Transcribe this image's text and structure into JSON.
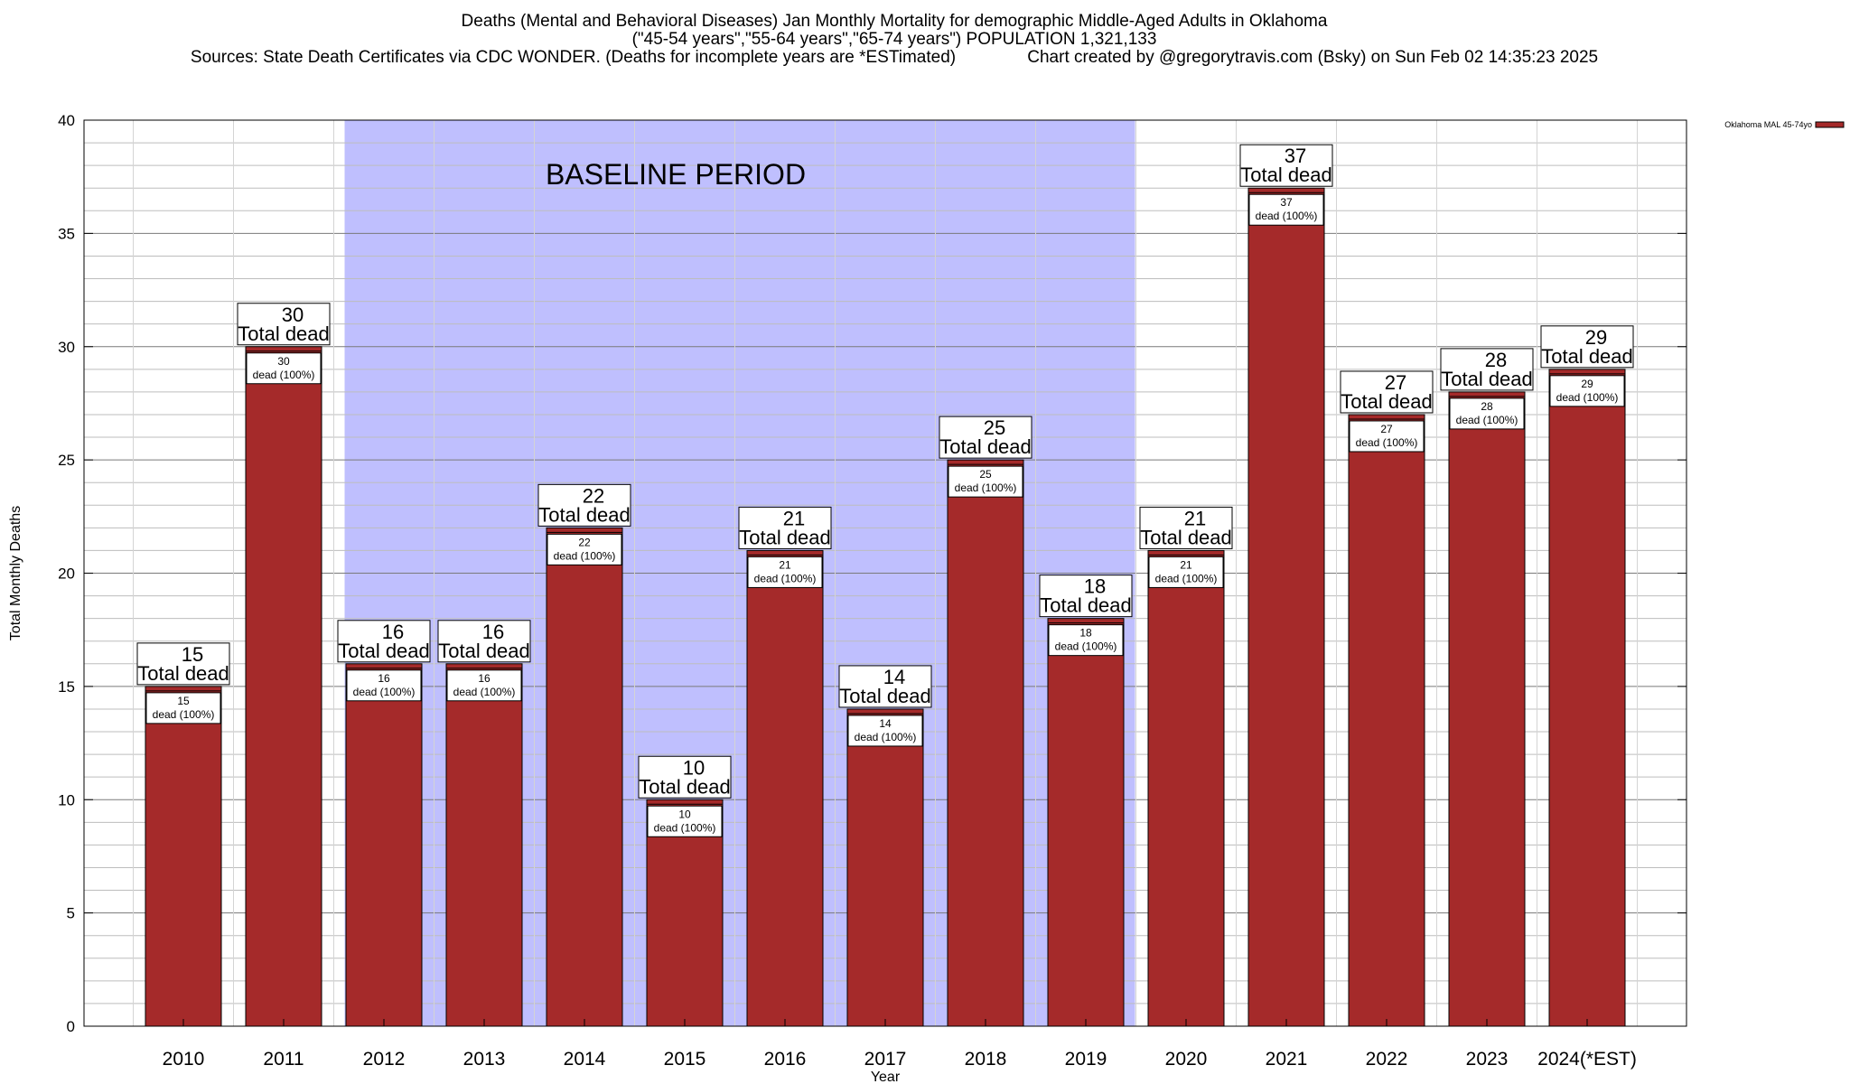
{
  "header": {
    "title_line1": "Deaths (Mental and Behavioral Diseases) Jan Monthly Mortality for demographic Middle-Aged Adults in Oklahoma",
    "title_line2": "(\"45-54 years\",\"55-64 years\",\"65-74 years\") POPULATION 1,321,133",
    "title_line3": "Sources: State Death Certificates via CDC WONDER. (Deaths for incomplete years are *ESTimated)               Chart created by @gregorytravis.com (Bsky) on Sun Feb 02 14:35:23 2025"
  },
  "chart_data": {
    "type": "bar",
    "xlabel": "Year",
    "ylabel": "Total Monthly Deaths",
    "ylim": [
      0,
      40
    ],
    "y_ticks": [
      0,
      5,
      10,
      15,
      20,
      25,
      30,
      35,
      40
    ],
    "grid": true,
    "categories": [
      "2010",
      "2011",
      "2012",
      "2013",
      "2014",
      "2015",
      "2016",
      "2017",
      "2018",
      "2019",
      "2020",
      "2021",
      "2022",
      "2023",
      "2024(*EST)"
    ],
    "series": [
      {
        "name": "Oklahoma MAL 45-74yo",
        "color": "#a52a2a",
        "values": [
          15,
          30,
          16,
          16,
          22,
          10,
          21,
          14,
          25,
          18,
          21,
          37,
          27,
          28,
          29
        ]
      }
    ],
    "bar_label_text": "Total dead",
    "bar_inner_label_text": "dead (100%)",
    "baseline_period": {
      "label": "BASELINE PERIOD",
      "from": "2012",
      "to": "2019",
      "color": "#bfbffe"
    },
    "legend_position": "top-right"
  }
}
